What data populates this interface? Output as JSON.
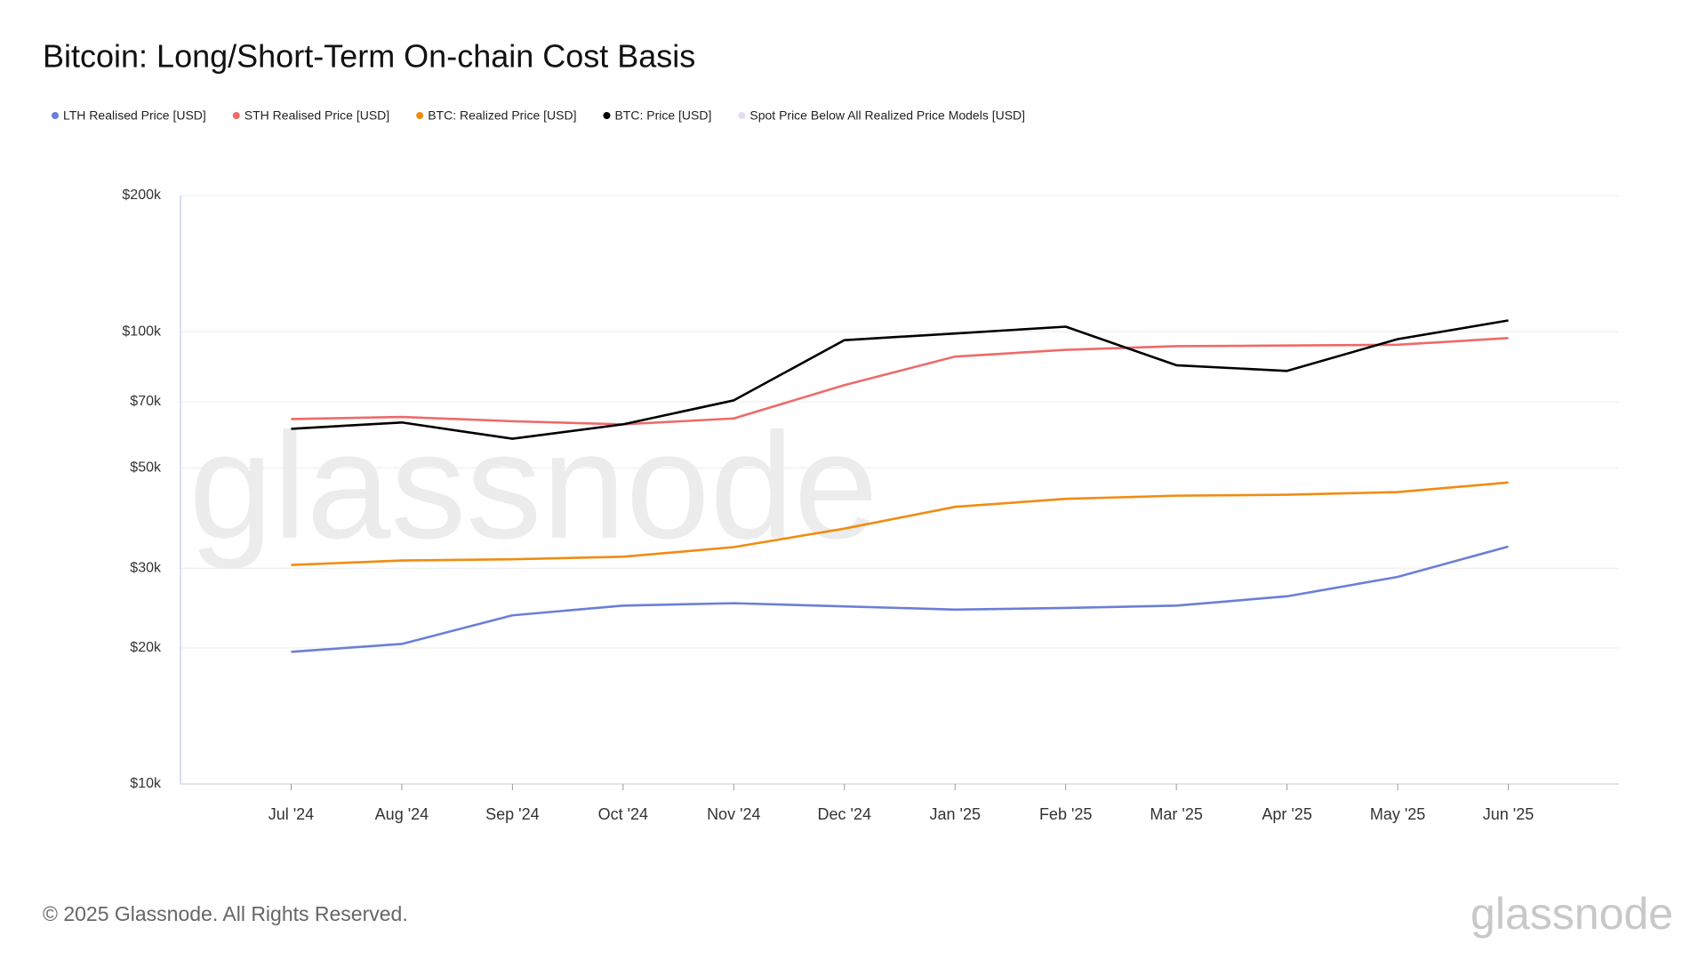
{
  "chart_data": {
    "type": "line",
    "title": "Bitcoin: Long/Short-Term On-chain Cost Basis",
    "watermark": "glassnode",
    "footer": "© 2025 Glassnode. All Rights Reserved.",
    "logo": "glassnode",
    "log_scale": true,
    "grid": true,
    "legend": "top-left",
    "x": [
      "2024-07",
      "2024-08",
      "2024-09",
      "2024-10",
      "2024-11",
      "2024-12",
      "2025-01",
      "2025-02",
      "2025-03",
      "2025-04",
      "2025-05",
      "2025-06"
    ],
    "xlim": [
      "2024-06",
      "2025-07"
    ],
    "xticks": [
      {
        "value": "2024-07",
        "label": "Jul '24"
      },
      {
        "value": "2024-08",
        "label": "Aug '24"
      },
      {
        "value": "2024-09",
        "label": "Sep '24"
      },
      {
        "value": "2024-10",
        "label": "Oct '24"
      },
      {
        "value": "2024-11",
        "label": "Nov '24"
      },
      {
        "value": "2024-12",
        "label": "Dec '24"
      },
      {
        "value": "2025-01",
        "label": "Jan '25"
      },
      {
        "value": "2025-02",
        "label": "Feb '25"
      },
      {
        "value": "2025-03",
        "label": "Mar '25"
      },
      {
        "value": "2025-04",
        "label": "Apr '25"
      },
      {
        "value": "2025-05",
        "label": "May '25"
      },
      {
        "value": "2025-06",
        "label": "Jun '25"
      }
    ],
    "ylim": [
      10000,
      200000
    ],
    "yticks": [
      {
        "value": 10000,
        "label": "$10k"
      },
      {
        "value": 20000,
        "label": "$20k"
      },
      {
        "value": 30000,
        "label": "$30k"
      },
      {
        "value": 50000,
        "label": "$50k"
      },
      {
        "value": 70000,
        "label": "$70k"
      },
      {
        "value": 100000,
        "label": "$100k"
      },
      {
        "value": 200000,
        "label": "$200k"
      }
    ],
    "series": [
      {
        "name": "LTH Realised Price [USD]",
        "color": "#6b7fd7",
        "values": [
          19600,
          20400,
          23600,
          24800,
          25100,
          24700,
          24300,
          24500,
          24800,
          26000,
          28700,
          33500
        ]
      },
      {
        "name": "STH Realised Price [USD]",
        "color": "#ee6a6a",
        "values": [
          64100,
          64800,
          63400,
          62400,
          64300,
          76200,
          88100,
          91200,
          92900,
          93200,
          93600,
          96800
        ]
      },
      {
        "name": "BTC: Realized Price [USD]",
        "color": "#f08c12",
        "values": [
          30500,
          31200,
          31400,
          31800,
          33400,
          36700,
          41000,
          42700,
          43400,
          43600,
          44200,
          46400
        ]
      },
      {
        "name": "BTC: Price [USD]",
        "color": "#000000",
        "values": [
          61000,
          63000,
          58000,
          62400,
          70500,
          95800,
          99100,
          102600,
          84300,
          81900,
          96300,
          105900
        ]
      },
      {
        "name": "Spot Price Below All Realized Price Models [USD]",
        "color": "#e6dcf5",
        "values": [
          null,
          null,
          null,
          null,
          null,
          null,
          null,
          null,
          null,
          null,
          null,
          null
        ]
      }
    ]
  }
}
